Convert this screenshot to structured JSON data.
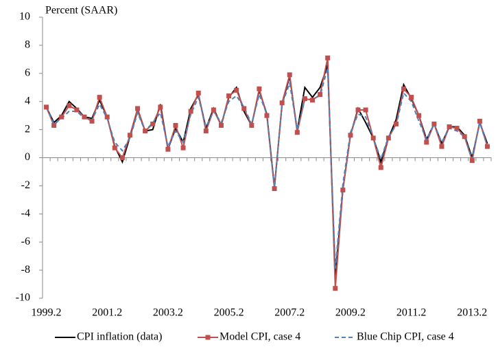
{
  "chart_data": {
    "type": "line",
    "y_label": "Percent (SAAR)",
    "categories": [
      "1999.2",
      null,
      null,
      null,
      null,
      null,
      null,
      null,
      "2001.2",
      null,
      null,
      null,
      null,
      null,
      null,
      null,
      "2003.2",
      null,
      null,
      null,
      null,
      null,
      null,
      null,
      "2005.2",
      null,
      null,
      null,
      null,
      null,
      null,
      null,
      "2007.2",
      null,
      null,
      null,
      null,
      null,
      null,
      null,
      "2009.2",
      null,
      null,
      null,
      null,
      null,
      null,
      null,
      "2011.2",
      null,
      null,
      null,
      null,
      null,
      null,
      null,
      "2013.2",
      null,
      null
    ],
    "series": [
      {
        "name": "CPI inflation (data)",
        "color": "#000000",
        "dashed": false,
        "marker": "none",
        "values": [
          3.6,
          2.5,
          3.0,
          4.0,
          3.5,
          2.9,
          2.8,
          4.1,
          2.9,
          0.8,
          -0.3,
          1.5,
          3.4,
          1.9,
          2.0,
          3.8,
          0.6,
          2.1,
          1.1,
          3.5,
          4.5,
          2.1,
          3.5,
          2.3,
          4.3,
          5.0,
          3.3,
          2.3,
          4.8,
          3.1,
          -2.1,
          3.8,
          5.8,
          1.9,
          5.0,
          4.3,
          5.0,
          6.6,
          -8.5,
          -2.3,
          1.6,
          3.5,
          2.5,
          1.4,
          -0.3,
          1.4,
          2.7,
          5.2,
          4.2,
          3.0,
          1.3,
          2.4,
          1.0,
          2.2,
          2.2,
          1.6,
          0.0,
          2.5,
          1.0
        ]
      },
      {
        "name": "Model CPI, case 4",
        "color": "#c0504d",
        "dashed": false,
        "marker": "square",
        "values": [
          3.6,
          2.3,
          2.9,
          3.7,
          3.4,
          2.9,
          2.6,
          4.3,
          2.9,
          0.7,
          0.0,
          1.6,
          3.5,
          1.9,
          2.4,
          3.6,
          0.6,
          2.3,
          0.7,
          3.3,
          4.6,
          1.9,
          3.4,
          2.3,
          4.4,
          4.8,
          3.5,
          2.3,
          4.9,
          3.0,
          -2.2,
          3.9,
          5.9,
          1.8,
          4.2,
          4.1,
          4.5,
          7.1,
          -9.3,
          -2.3,
          1.6,
          3.4,
          3.4,
          1.4,
          -0.7,
          1.4,
          2.4,
          4.9,
          4.3,
          3.0,
          1.1,
          2.4,
          0.8,
          2.2,
          2.1,
          1.5,
          -0.2,
          2.6,
          0.8
        ]
      },
      {
        "name": "Blue Chip CPI, case 4",
        "color": "#4f81bd",
        "dashed": true,
        "marker": "none",
        "values": [
          3.6,
          2.4,
          2.8,
          3.3,
          3.3,
          2.8,
          2.7,
          3.8,
          2.8,
          1.1,
          0.5,
          1.4,
          3.2,
          1.9,
          2.5,
          3.2,
          0.8,
          1.9,
          1.1,
          3.1,
          4.3,
          2.2,
          3.3,
          2.5,
          4.0,
          4.4,
          3.6,
          2.4,
          4.5,
          3.1,
          -2.1,
          3.8,
          5.3,
          2.0,
          4.1,
          4.2,
          4.4,
          6.4,
          -7.9,
          -1.9,
          1.8,
          3.1,
          2.9,
          1.4,
          -0.1,
          1.5,
          2.3,
          4.6,
          4.0,
          2.6,
          1.3,
          2.4,
          1.1,
          2.1,
          1.9,
          1.5,
          -0.1,
          2.5,
          0.8
        ]
      }
    ],
    "ylim": [
      -10,
      10
    ],
    "yticks": [
      -10,
      -8,
      -6,
      -4,
      -2,
      0,
      2,
      4,
      6,
      8,
      10
    ],
    "grid": false
  }
}
